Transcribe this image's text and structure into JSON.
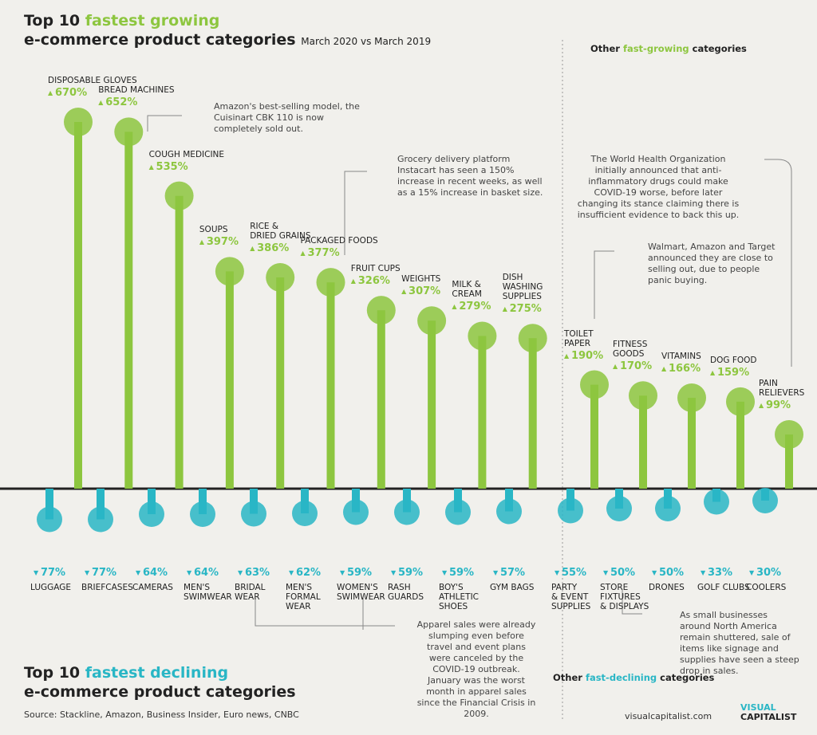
{
  "title": {
    "lead": "Top 10",
    "highlight": "fastest growing",
    "line2": "e-commerce product categories",
    "period": "March 2020 vs March 2019"
  },
  "chart_data": [
    {
      "type": "bar",
      "direction": "up",
      "color": "#8dc63f",
      "other_heading": {
        "lead": "Other",
        "highlight": "fast-growing",
        "tail": "categories"
      },
      "categories": [
        "DISPOSABLE GLOVES",
        "BREAD MACHINES",
        "COUGH MEDICINE",
        "SOUPS",
        "RICE &\nDRIED GRAINS",
        "PACKAGED FOODS",
        "FRUIT CUPS",
        "WEIGHTS",
        "MILK &\nCREAM",
        "DISH\nWASHING\nSUPPLIES",
        "TOILET\nPAPER",
        "FITNESS\nGOODS",
        "VITAMINS",
        "DOG FOOD",
        "PAIN\nRELIEVERS"
      ],
      "values": [
        670,
        652,
        535,
        397,
        386,
        377,
        326,
        307,
        279,
        275,
        190,
        170,
        166,
        159,
        99
      ],
      "value_labels": [
        "670%",
        "652%",
        "535%",
        "397%",
        "386%",
        "377%",
        "326%",
        "307%",
        "279%",
        "275%",
        "190%",
        "170%",
        "166%",
        "159%",
        "99%"
      ]
    },
    {
      "type": "bar",
      "direction": "down",
      "color": "#29b6c5",
      "title": {
        "lead": "Top 10",
        "highlight": "fastest declining",
        "line2": "e-commerce product categories"
      },
      "other_heading": {
        "lead": "Other",
        "highlight": "fast-declining",
        "tail": "categories"
      },
      "categories": [
        "LUGGAGE",
        "BRIEFCASES",
        "CAMERAS",
        "MEN'S\nSWIMWEAR",
        "BRIDAL\nWEAR",
        "MEN'S\nFORMAL\nWEAR",
        "WOMEN'S\nSWIMWEAR",
        "RASH\nGUARDS",
        "BOY'S\nATHLETIC\nSHOES",
        "GYM BAGS",
        "PARTY\n& EVENT\nSUPPLIES",
        "STORE\nFIXTURES\n& DISPLAYS",
        "DRONES",
        "GOLF CLUBS",
        "COOLERS"
      ],
      "values": [
        77,
        77,
        64,
        64,
        63,
        62,
        59,
        59,
        59,
        57,
        55,
        50,
        50,
        33,
        30
      ],
      "value_labels": [
        "77%",
        "77%",
        "64%",
        "64%",
        "63%",
        "62%",
        "59%",
        "59%",
        "59%",
        "57%",
        "55%",
        "50%",
        "50%",
        "33%",
        "30%"
      ]
    }
  ],
  "annotations": [
    "Amazon's best-selling model, the Cuisinart CBK 110 is now completely sold out.",
    "Grocery delivery platform Instacart has seen a 150% increase in recent weeks, as well as a 15% increase in basket size.",
    "The World Health Organization initially announced that anti-inflammatory drugs could make COVID-19 worse, before later changing its stance claiming there is insufficient evidence to back this up.",
    "Walmart, Amazon and Target announced they are close to selling out, due to people panic buying.",
    "Apparel sales were already slumping even before travel and event plans were canceled by the COVID-19 outbreak. January was the worst month in apparel sales since the Financial Crisis in 2009.",
    "As small businesses around North America remain shuttered, sale of items like signage and supplies have seen a steep drop in sales."
  ],
  "source": "Source: Stackline, Amazon, Business Insider, Euro news, CNBC",
  "footer": {
    "url": "visualcapitalist.com",
    "logo_top": "VISUAL",
    "logo_bottom": "CAPITALIST"
  }
}
